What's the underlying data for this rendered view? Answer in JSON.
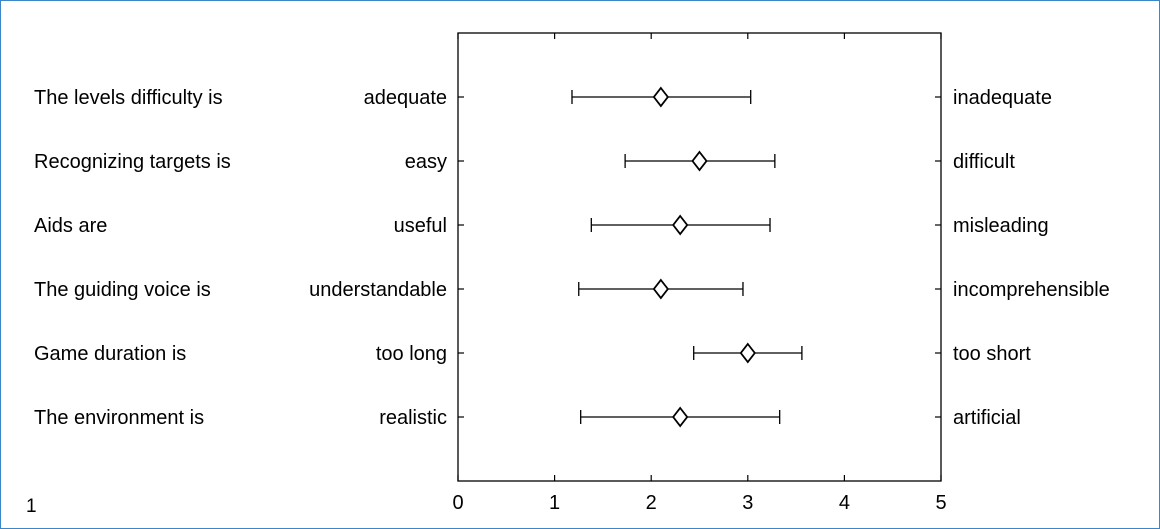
{
  "figure_number": "1",
  "chart_data": {
    "type": "scatter",
    "subtype": "mean-with-error-bars",
    "xlim": [
      0,
      5
    ],
    "x_ticks": [
      0,
      1,
      2,
      3,
      4,
      5
    ],
    "grid": false,
    "items": [
      {
        "statement": "The levels difficulty is",
        "left_anchor": "adequate",
        "right_anchor": "inadequate",
        "mean": 2.1,
        "low": 1.18,
        "high": 3.03
      },
      {
        "statement": "Recognizing targets is",
        "left_anchor": "easy",
        "right_anchor": "difficult",
        "mean": 2.5,
        "low": 1.73,
        "high": 3.28
      },
      {
        "statement": "Aids are",
        "left_anchor": "useful",
        "right_anchor": "misleading",
        "mean": 2.3,
        "low": 1.38,
        "high": 3.23
      },
      {
        "statement": "The guiding voice is",
        "left_anchor": "understandable",
        "right_anchor": "incomprehensible",
        "mean": 2.1,
        "low": 1.25,
        "high": 2.95
      },
      {
        "statement": "Game duration is",
        "left_anchor": "too long",
        "right_anchor": "too short",
        "mean": 3.0,
        "low": 2.44,
        "high": 3.56
      },
      {
        "statement": "The environment is",
        "left_anchor": "realistic",
        "right_anchor": "artificial",
        "mean": 2.3,
        "low": 1.27,
        "high": 3.33
      }
    ]
  }
}
